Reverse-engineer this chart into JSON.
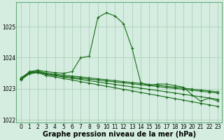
{
  "x": [
    0,
    1,
    2,
    3,
    4,
    5,
    6,
    7,
    8,
    9,
    10,
    11,
    12,
    13,
    14,
    15,
    16,
    17,
    18,
    19,
    20,
    21,
    22,
    23
  ],
  "lines": [
    [
      1023.3,
      1023.55,
      1023.6,
      1023.55,
      1023.52,
      1023.5,
      1023.55,
      1024.0,
      1024.05,
      1025.3,
      1025.45,
      1025.35,
      1025.1,
      1024.3,
      1023.2,
      1023.1,
      1023.15,
      1023.15,
      1023.1,
      1023.05,
      1022.8,
      1022.6,
      1022.7,
      1022.6
    ],
    [
      1023.28,
      1023.48,
      1023.52,
      1023.42,
      1023.38,
      1023.33,
      1023.28,
      1023.23,
      1023.18,
      1023.13,
      1023.08,
      1023.03,
      1022.98,
      1022.93,
      1022.88,
      1022.83,
      1022.78,
      1022.73,
      1022.68,
      1022.63,
      1022.58,
      1022.53,
      1022.48,
      1022.43
    ],
    [
      1023.32,
      1023.5,
      1023.54,
      1023.46,
      1023.42,
      1023.38,
      1023.34,
      1023.3,
      1023.26,
      1023.22,
      1023.18,
      1023.14,
      1023.1,
      1023.06,
      1023.02,
      1022.98,
      1022.94,
      1022.9,
      1022.86,
      1022.82,
      1022.78,
      1022.74,
      1022.7,
      1022.66
    ],
    [
      1023.35,
      1023.53,
      1023.57,
      1023.5,
      1023.47,
      1023.44,
      1023.41,
      1023.38,
      1023.35,
      1023.32,
      1023.29,
      1023.26,
      1023.23,
      1023.2,
      1023.17,
      1023.14,
      1023.11,
      1023.08,
      1023.05,
      1023.02,
      1022.99,
      1022.96,
      1022.93,
      1022.9
    ],
    [
      1023.3,
      1023.5,
      1023.55,
      1023.48,
      1023.44,
      1023.4,
      1023.37,
      1023.34,
      1023.31,
      1023.28,
      1023.25,
      1023.22,
      1023.19,
      1023.16,
      1023.13,
      1023.1,
      1023.07,
      1023.04,
      1023.01,
      1022.98,
      1022.95,
      1022.92,
      1022.89,
      1022.86
    ]
  ],
  "bg_color": "#d4ede0",
  "line_color": "#1a6b1a",
  "grid_color": "#a8c8b0",
  "xlabel": "Graphe pression niveau de la mer (hPa)",
  "ylim": [
    1021.9,
    1025.8
  ],
  "yticks": [
    1022,
    1023,
    1024,
    1025
  ],
  "xticks": [
    0,
    1,
    2,
    3,
    4,
    5,
    6,
    7,
    8,
    9,
    10,
    11,
    12,
    13,
    14,
    15,
    16,
    17,
    18,
    19,
    20,
    21,
    22,
    23
  ],
  "tick_fontsize": 5.5,
  "xlabel_fontsize": 7.0,
  "marker": "+",
  "markersize": 3.5,
  "linewidth": 0.8
}
